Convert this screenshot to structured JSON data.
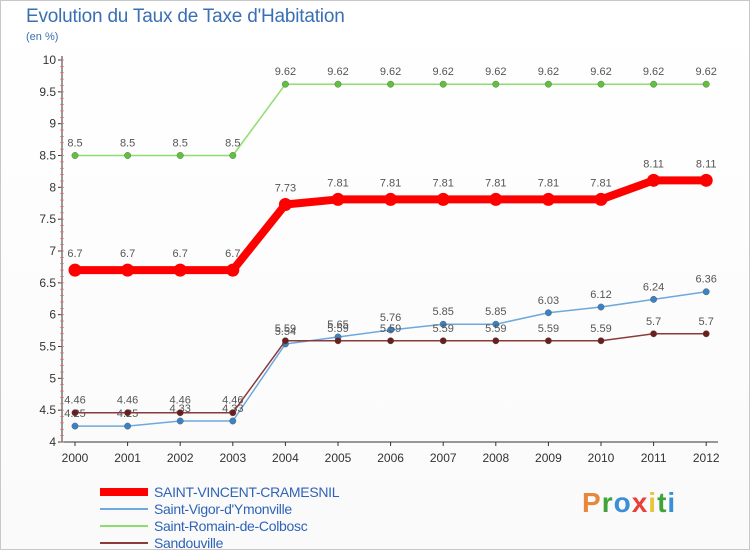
{
  "title": "Evolution du Taux de Taxe d'Habitation",
  "subtitle": "(en %)",
  "logo_text": "Proxiti",
  "logo_colors": [
    "#e8873a",
    "#3fa33a",
    "#3a8fd6",
    "#e8413a",
    "#e8c53a",
    "#3fa33a",
    "#3a8fd6"
  ],
  "chart_data": {
    "type": "line",
    "title": "Evolution du Taux de Taxe d'Habitation",
    "ylabel": "(en %)",
    "xlabel": "",
    "x": [
      "2000",
      "2001",
      "2002",
      "2003",
      "2004",
      "2005",
      "2006",
      "2007",
      "2008",
      "2009",
      "2010",
      "2011",
      "2012"
    ],
    "ylim": [
      4,
      10
    ],
    "yticks": [
      4,
      4.5,
      5,
      5.5,
      6,
      6.5,
      7,
      7.5,
      8,
      8.5,
      9,
      9.5,
      10
    ],
    "grid": false,
    "legend": "bottom-left",
    "series": [
      {
        "name": "SAINT-VINCENT-CRAMESNIL",
        "color": "#ff0000",
        "width": 8,
        "values": [
          6.7,
          6.7,
          6.7,
          6.7,
          7.73,
          7.81,
          7.81,
          7.81,
          7.81,
          7.81,
          7.81,
          8.11,
          8.11
        ],
        "labels": [
          "6.7",
          "6.7",
          "6.7",
          "6.7",
          "7.73",
          "7.81",
          "7.81",
          "7.81",
          "7.81",
          "7.81",
          "7.81",
          "8.11",
          "8.11"
        ]
      },
      {
        "name": "Saint-Vigor-d'Ymonville",
        "color": "#6fa8dc",
        "marker": "#3a82c4",
        "width": 1.5,
        "values": [
          4.25,
          4.25,
          4.33,
          4.33,
          5.54,
          5.65,
          5.76,
          5.85,
          5.85,
          6.03,
          6.12,
          6.24,
          6.36
        ],
        "labels": [
          "4.25",
          "4.25",
          "4.33",
          "4.33",
          "5.54",
          "5.65",
          "5.76",
          "5.85",
          "5.85",
          "6.03",
          "6.12",
          "6.24",
          "6.36"
        ]
      },
      {
        "name": "Saint-Romain-de-Colbosc",
        "color": "#8fdc6f",
        "marker": "#5ec23a",
        "width": 1.5,
        "values": [
          8.5,
          8.5,
          8.5,
          8.5,
          9.62,
          9.62,
          9.62,
          9.62,
          9.62,
          9.62,
          9.62,
          9.62,
          9.62
        ],
        "labels": [
          "8.5",
          "8.5",
          "8.5",
          "8.5",
          "9.62",
          "9.62",
          "9.62",
          "9.62",
          "9.62",
          "9.62",
          "9.62",
          "9.62",
          "9.62"
        ]
      },
      {
        "name": "Sandouville",
        "color": "#8b3a3a",
        "marker": "#6b1e1e",
        "width": 1.5,
        "values": [
          4.46,
          4.46,
          4.46,
          4.46,
          5.59,
          5.59,
          5.59,
          5.59,
          5.59,
          5.59,
          5.59,
          5.7,
          5.7
        ],
        "labels": [
          "4.46",
          "4.46",
          "4.46",
          "4.46",
          "5.59",
          "5.59",
          "5.59",
          "5.59",
          "5.59",
          "5.59",
          "5.59",
          "5.7",
          "5.7"
        ]
      }
    ]
  }
}
